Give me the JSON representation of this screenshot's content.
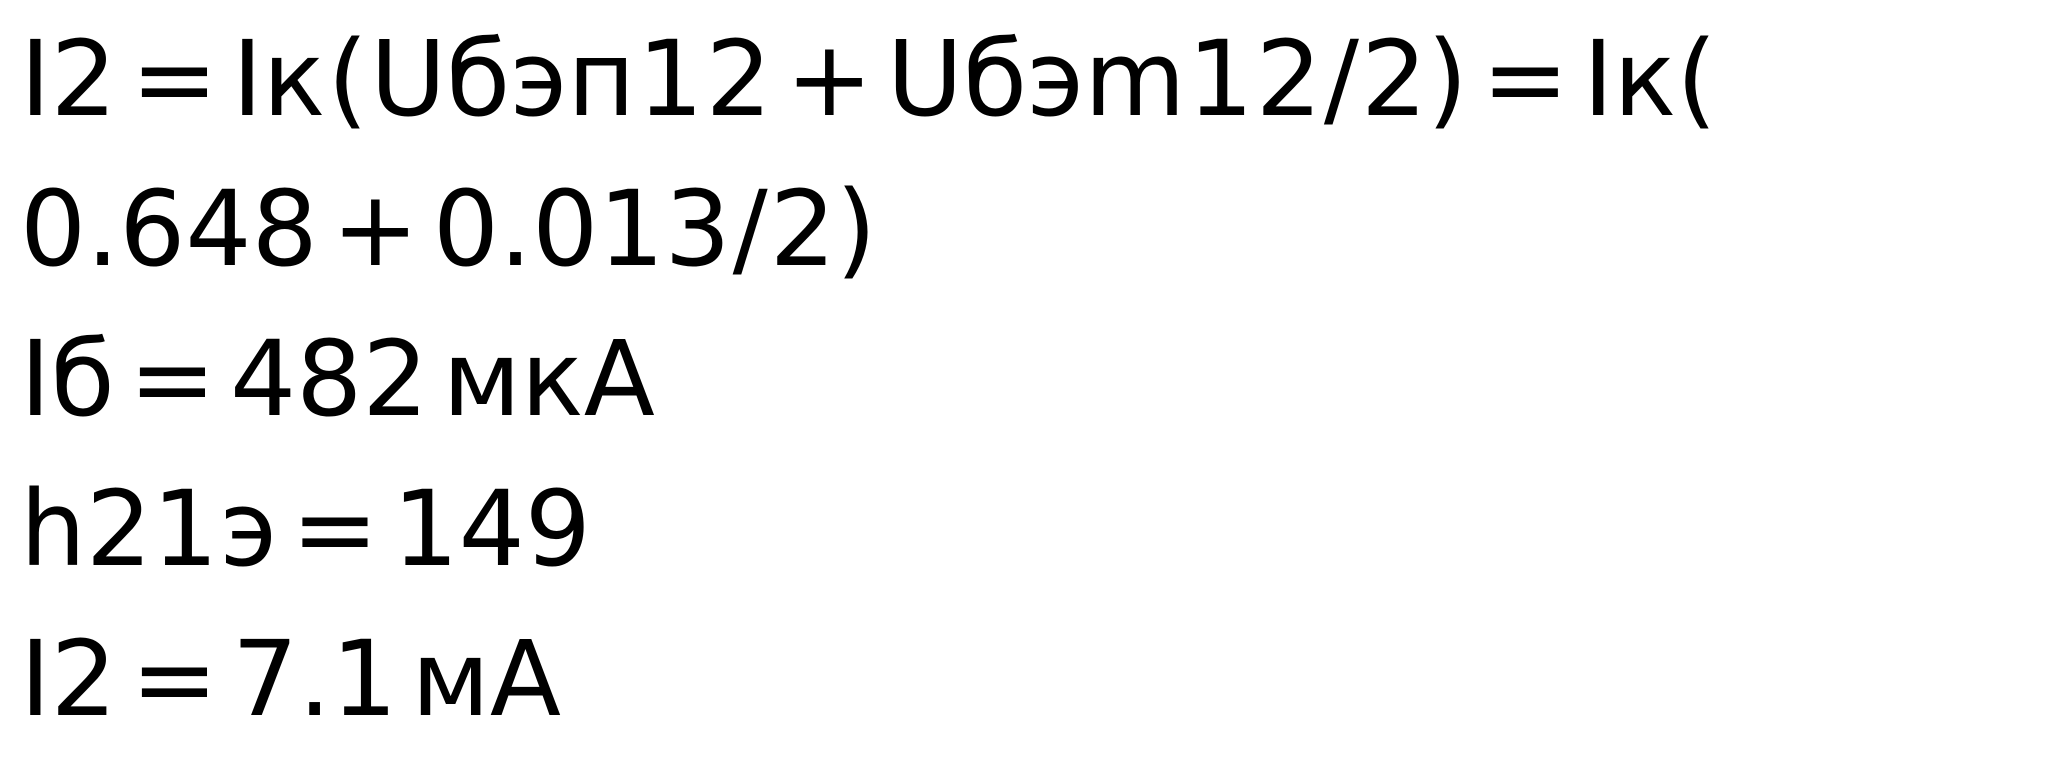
{
  "formula_line1": {
    "lhs": "I2",
    "eq1": "=",
    "ik1": "Iк",
    "open1": "(",
    "u1": "Uбэп",
    "sub1a": "1",
    "sub1b": "2",
    "plus1": "+",
    "u2": "Uбэm",
    "sub2a": "1",
    "sub2b": "2",
    "slash1": "/",
    "two1": "2)",
    "eq2": "=",
    "ik2": "Iк(",
    "v1": "0.648",
    "plus2": "+",
    "v2": "0.013",
    "slash2": "/",
    "two2": "2)"
  },
  "formula_line2": {
    "lhs": "Iб",
    "eq": "=",
    "value": "482",
    "unit": "мкА"
  },
  "formula_line3": {
    "lhs": "h21",
    "sub": "э",
    "eq": "=",
    "value": "149"
  },
  "formula_line4": {
    "lhs": "I2",
    "eq": "=",
    "value": "7.1",
    "unit": "мА"
  }
}
